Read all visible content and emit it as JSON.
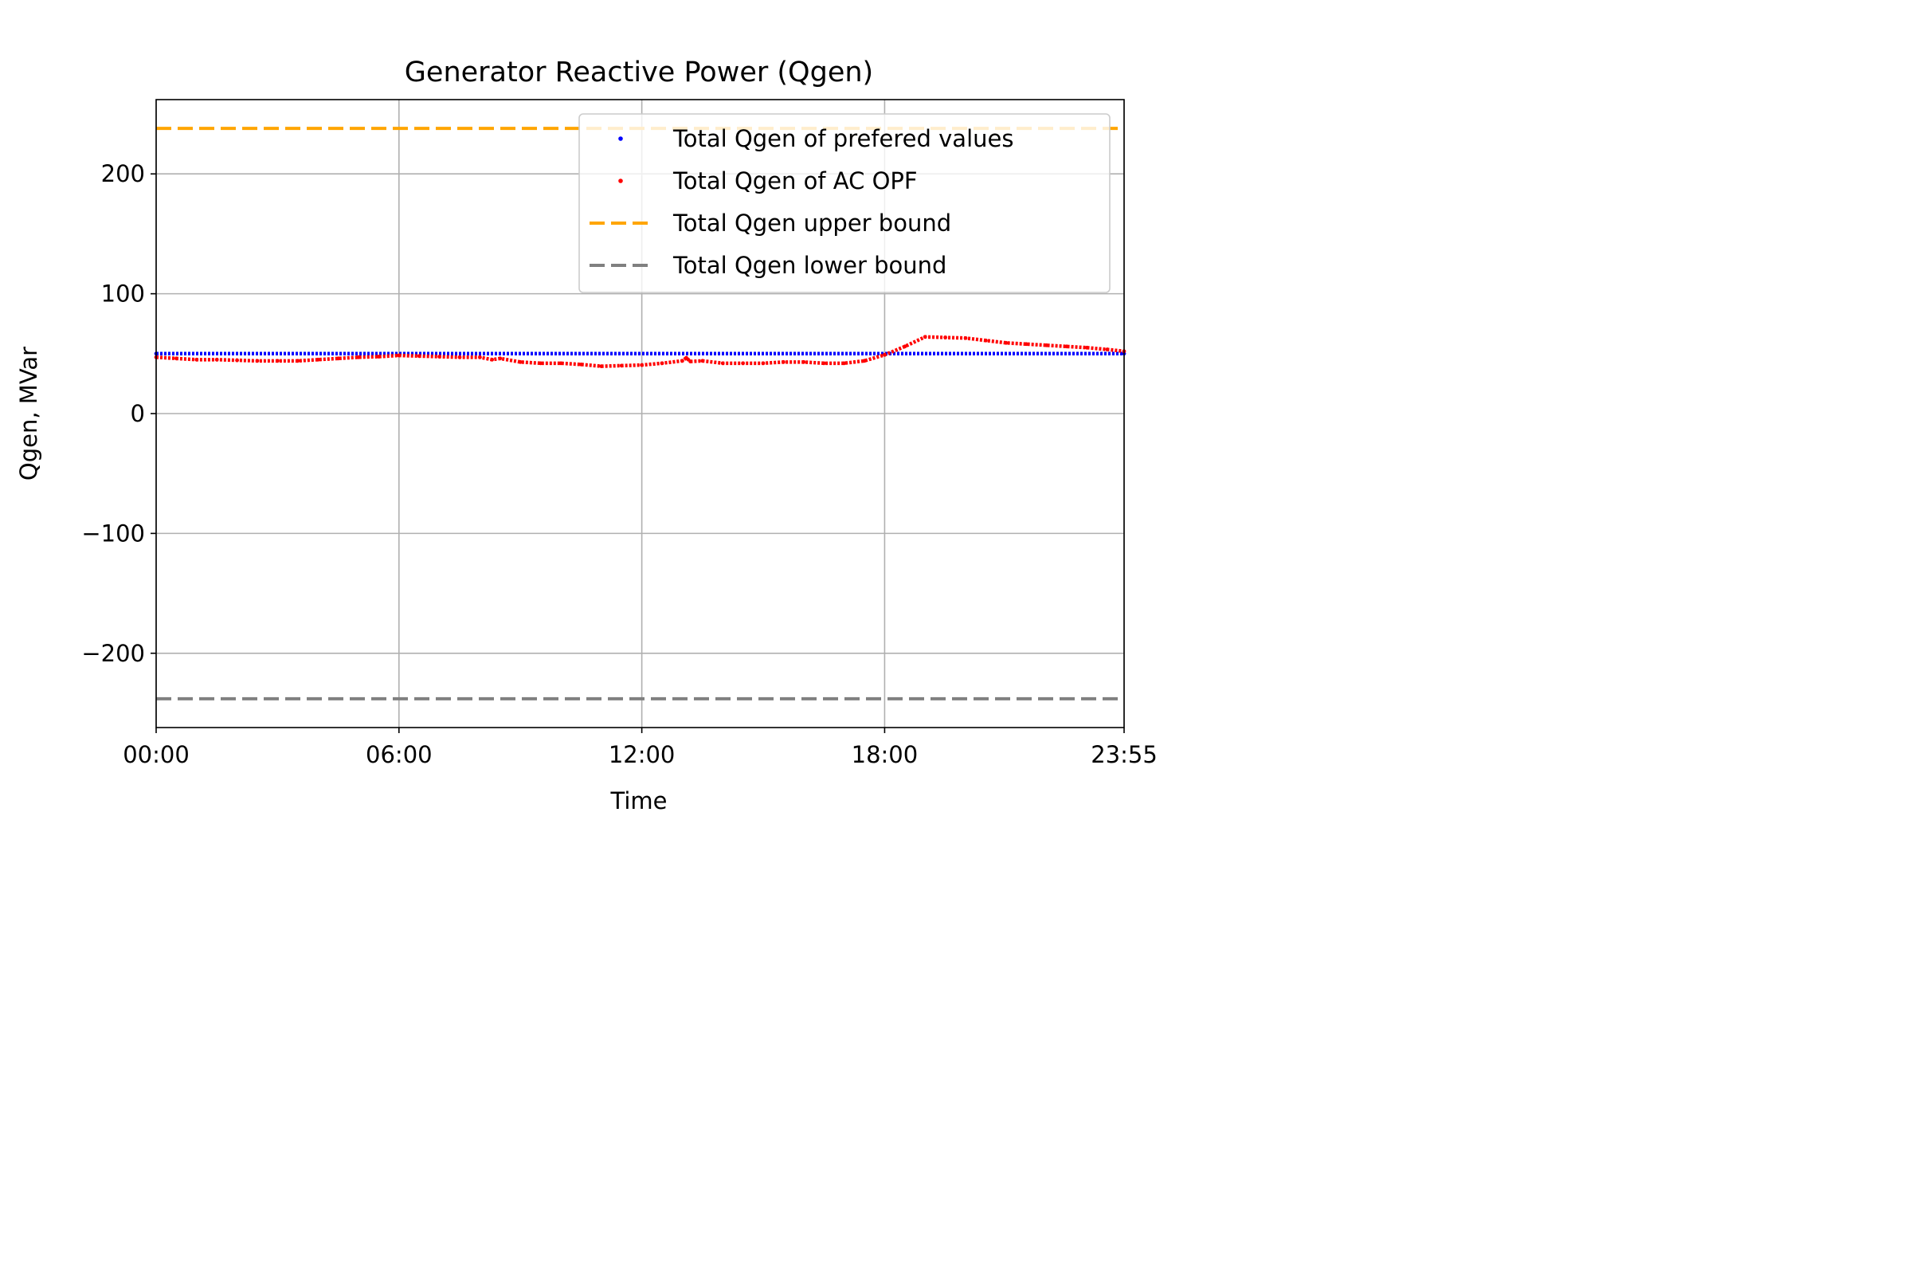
{
  "chart_data": {
    "type": "line",
    "title": "Generator Reactive Power (Qgen)",
    "xlabel": "Time",
    "ylabel": "Qgen, MVar",
    "x_unit": "hours",
    "xlim": [
      0,
      23.9167
    ],
    "ylim": [
      -262,
      262
    ],
    "x_ticks": [
      {
        "value": 0,
        "label": "00:00"
      },
      {
        "value": 6,
        "label": "06:00"
      },
      {
        "value": 12,
        "label": "12:00"
      },
      {
        "value": 18,
        "label": "18:00"
      },
      {
        "value": 23.9167,
        "label": "23:55"
      }
    ],
    "y_ticks": [
      {
        "value": 200,
        "label": "200"
      },
      {
        "value": 100,
        "label": "100"
      },
      {
        "value": 0,
        "label": "0"
      },
      {
        "value": -100,
        "label": "−100"
      },
      {
        "value": -200,
        "label": "−200"
      }
    ],
    "grid": true,
    "legend_position": "top-right",
    "series": [
      {
        "name": "Total Qgen of prefered values",
        "style": "dots",
        "color": "#0000ff",
        "x": [
          0,
          23.9167
        ],
        "y": [
          50,
          50
        ]
      },
      {
        "name": "Total Qgen of AC OPF",
        "style": "dots",
        "color": "#ff0000",
        "x": [
          0,
          0.5,
          1,
          1.5,
          2,
          2.5,
          3,
          3.5,
          4,
          4.5,
          5,
          5.5,
          6,
          6.5,
          7,
          7.5,
          8,
          8.3,
          8.5,
          9,
          9.5,
          10,
          10.5,
          11,
          11.5,
          12,
          12.5,
          13,
          13.1,
          13.2,
          13.5,
          14,
          14.5,
          15,
          15.5,
          16,
          16.5,
          17,
          17.5,
          18,
          18.5,
          19,
          19.5,
          20,
          20.5,
          21,
          21.5,
          22,
          22.5,
          23,
          23.5,
          23.9167
        ],
        "y": [
          47,
          46,
          45,
          45,
          44.5,
          44,
          44,
          44,
          45,
          46,
          47,
          47.5,
          48.5,
          48,
          47.5,
          47,
          47,
          45,
          46,
          43,
          42,
          42,
          41,
          39.5,
          40,
          40.5,
          42,
          44,
          46.5,
          43.5,
          44,
          42,
          42,
          42,
          43,
          43,
          42,
          42,
          44,
          49,
          56,
          64,
          63.5,
          63,
          61,
          59,
          58,
          57,
          56,
          55,
          53.5,
          52
        ]
      },
      {
        "name": "Total Qgen upper bound",
        "style": "dashed",
        "color": "#ffa500",
        "x": [
          0,
          23.9167
        ],
        "y": [
          238,
          238
        ]
      },
      {
        "name": "Total Qgen lower bound",
        "style": "dashed",
        "color": "#808080",
        "x": [
          0,
          23.9167
        ],
        "y": [
          -238,
          -238
        ]
      }
    ]
  }
}
